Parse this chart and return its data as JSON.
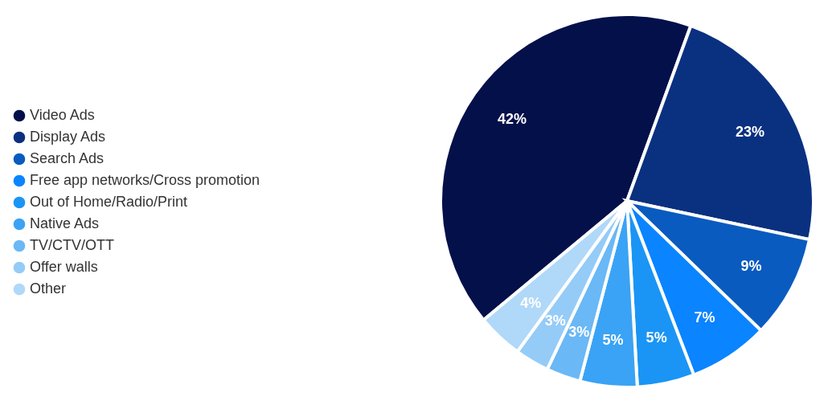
{
  "chart_data": {
    "type": "pie",
    "categories": [
      "Video Ads",
      "Display Ads",
      "Search Ads",
      "Free app networks/Cross promotion",
      "Out of Home/Radio/Print",
      "Native Ads",
      "TV/CTV/OTT",
      "Offer walls",
      "Other"
    ],
    "values": [
      42,
      23,
      9,
      7,
      5,
      5,
      3,
      3,
      4
    ],
    "colors": [
      "#03104a",
      "#0a3080",
      "#0a5bbf",
      "#0a84ff",
      "#1a95f5",
      "#3aa3f5",
      "#6ab8f5",
      "#95cbf7",
      "#b0d8f8"
    ],
    "value_labels": [
      "42%",
      "23%",
      "9%",
      "7%",
      "5%",
      "5%",
      "3%",
      "3%",
      "4%"
    ],
    "legend": "left"
  }
}
